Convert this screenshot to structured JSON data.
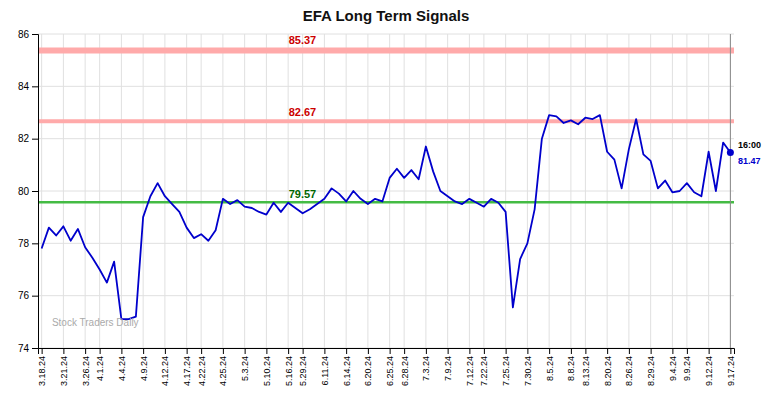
{
  "chart_data": {
    "type": "line",
    "title": "EFA Long Term Signals",
    "categories": [
      "3.18.24",
      null,
      null,
      "3.21.24",
      null,
      null,
      "3.26.24",
      null,
      "4.1.24",
      null,
      null,
      "4.4.24",
      null,
      null,
      "4.9.24",
      null,
      null,
      "4.12.24",
      null,
      null,
      "4.17.24",
      null,
      "4.22.24",
      null,
      null,
      "4.25.24",
      null,
      null,
      "5.3.24",
      null,
      null,
      "5.10.24",
      null,
      null,
      "5.16.24",
      null,
      "5.29.24",
      null,
      null,
      "6.11.24",
      null,
      null,
      "6.14.24",
      null,
      null,
      "6.20.24",
      null,
      null,
      "6.25.24",
      null,
      "6.28.24",
      null,
      null,
      "7.3.24",
      null,
      null,
      "7.9.24",
      null,
      null,
      "7.12.24",
      null,
      "7.22.24",
      null,
      null,
      "7.25.24",
      null,
      null,
      "7.30.24",
      null,
      null,
      "8.5.24",
      null,
      null,
      "8.8.24",
      null,
      "8.13.24",
      null,
      null,
      "8.20.24",
      null,
      null,
      "8.26.24",
      null,
      null,
      "8.29.24",
      null,
      null,
      "9.4.24",
      null,
      "9.9.24",
      null,
      null,
      "9.12.24",
      null,
      null,
      "9.17.24"
    ],
    "values": [
      77.8,
      78.6,
      78.3,
      78.65,
      78.1,
      78.55,
      77.85,
      77.45,
      77.0,
      76.5,
      77.3,
      75.1,
      75.1,
      75.2,
      79.0,
      79.8,
      80.3,
      79.8,
      79.5,
      79.2,
      78.6,
      78.2,
      78.35,
      78.1,
      78.5,
      79.7,
      79.5,
      79.65,
      79.4,
      79.35,
      79.2,
      79.1,
      79.55,
      79.2,
      79.55,
      79.35,
      79.15,
      79.3,
      79.5,
      79.7,
      80.1,
      79.9,
      79.6,
      80.0,
      79.7,
      79.5,
      79.7,
      79.6,
      80.5,
      80.85,
      80.5,
      80.8,
      80.45,
      81.7,
      80.75,
      80.0,
      79.8,
      79.6,
      79.5,
      79.7,
      79.55,
      79.4,
      79.7,
      79.55,
      79.2,
      75.55,
      77.4,
      78.0,
      79.3,
      82.0,
      82.9,
      82.85,
      82.6,
      82.7,
      82.55,
      82.8,
      82.75,
      82.9,
      81.5,
      81.2,
      80.1,
      81.6,
      82.75,
      81.4,
      81.15,
      80.1,
      80.4,
      79.95,
      80.0,
      80.3,
      79.95,
      79.8,
      81.5,
      80.0,
      81.85,
      81.47
    ],
    "color": "#0000cc",
    "ylim": [
      74,
      86
    ],
    "yticks": [
      74,
      76,
      78,
      80,
      82,
      84,
      86
    ],
    "grid": true,
    "hlines": [
      {
        "value": 85.37,
        "label": "85.37",
        "color": "#ffaaaa",
        "label_color": "#cc0000"
      },
      {
        "value": 82.67,
        "label": "82.67",
        "color": "#ffaaaa",
        "label_color": "#cc0000"
      },
      {
        "value": 79.57,
        "label": "79.57",
        "color": "#44bb44",
        "label_color": "#006600"
      }
    ],
    "annotations": [
      {
        "text": "16:00",
        "color": "#000000"
      },
      {
        "text": "81.47",
        "color": "#0000cc"
      }
    ],
    "watermark": {
      "text": "Stock Traders Daily",
      "color": "#aaaaaa"
    }
  }
}
